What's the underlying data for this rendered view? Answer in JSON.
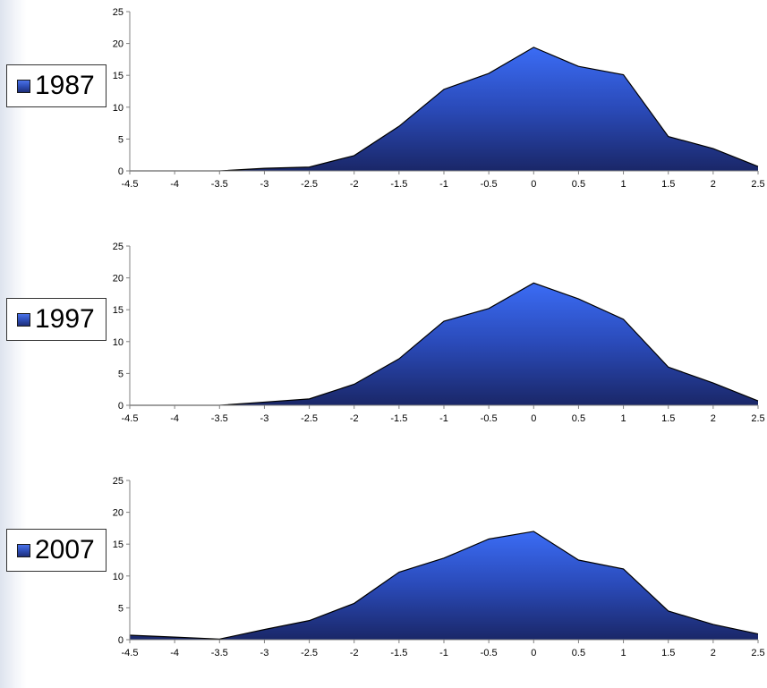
{
  "chart_data": [
    {
      "type": "area",
      "legend": "1987",
      "legend_placement": "left",
      "x": [
        -4.5,
        -4,
        -3.5,
        -3,
        -2.5,
        -2,
        -1.5,
        -1,
        -0.5,
        0,
        0.5,
        1,
        1.5,
        2,
        2.5
      ],
      "values": [
        0,
        0,
        0,
        0.4,
        0.6,
        2.4,
        7,
        12.8,
        15.3,
        19.4,
        16.4,
        15.1,
        5.4,
        3.5,
        0.7
      ],
      "xlim": [
        -4.5,
        2.5
      ],
      "ylim": [
        0,
        25
      ],
      "y_ticks": [
        0,
        5,
        10,
        15,
        20,
        25
      ],
      "x_tick_labels": [
        "-4.5",
        "-4",
        "-3.5",
        "-3",
        "-2.5",
        "-2",
        "-1.5",
        "-1",
        "-0.5",
        "0",
        "0.5",
        "1",
        "1.5",
        "2",
        "2.5"
      ],
      "y_tick_labels": [
        "0",
        "5",
        "10",
        "15",
        "20",
        "25"
      ],
      "grid": false
    },
    {
      "type": "area",
      "legend": "1997",
      "legend_placement": "left",
      "x": [
        -4.5,
        -4,
        -3.5,
        -3,
        -2.5,
        -2,
        -1.5,
        -1,
        -0.5,
        0,
        0.5,
        1,
        1.5,
        2,
        2.5
      ],
      "values": [
        0,
        0,
        0,
        0.5,
        1,
        3.3,
        7.3,
        13.2,
        15.2,
        19.2,
        16.7,
        13.5,
        6,
        3.5,
        0.7
      ],
      "xlim": [
        -4.5,
        2.5
      ],
      "ylim": [
        0,
        25
      ],
      "y_ticks": [
        0,
        5,
        10,
        15,
        20,
        25
      ],
      "x_tick_labels": [
        "-4.5",
        "-4",
        "-3.5",
        "-3",
        "-2.5",
        "-2",
        "-1.5",
        "-1",
        "-0.5",
        "0",
        "0.5",
        "1",
        "1.5",
        "2",
        "2.5"
      ],
      "y_tick_labels": [
        "0",
        "5",
        "10",
        "15",
        "20",
        "25"
      ],
      "grid": false
    },
    {
      "type": "area",
      "legend": "2007",
      "legend_placement": "left",
      "x": [
        -4.5,
        -4,
        -3.5,
        -3,
        -2.5,
        -2,
        -1.5,
        -1,
        -0.5,
        0,
        0.5,
        1,
        1.5,
        2,
        2.5
      ],
      "values": [
        0.7,
        0.4,
        0.1,
        1.6,
        3,
        5.7,
        10.6,
        12.8,
        15.8,
        17,
        12.5,
        11.1,
        4.5,
        2.4,
        0.9
      ],
      "xlim": [
        -4.5,
        2.5
      ],
      "ylim": [
        0,
        25
      ],
      "y_ticks": [
        0,
        5,
        10,
        15,
        20,
        25
      ],
      "x_tick_labels": [
        "-4.5",
        "-4",
        "-3.5",
        "-3",
        "-2.5",
        "-2",
        "-1.5",
        "-1",
        "-0.5",
        "0",
        "0.5",
        "1",
        "1.5",
        "2",
        "2.5"
      ],
      "y_tick_labels": [
        "0",
        "5",
        "10",
        "15",
        "20",
        "25"
      ],
      "grid": false
    }
  ],
  "colors": {
    "area_top": "#3b6cf5",
    "area_mid": "#2a4ab8",
    "area_bottom": "#1a2768",
    "outline": "#000000",
    "axis": "#808080"
  }
}
